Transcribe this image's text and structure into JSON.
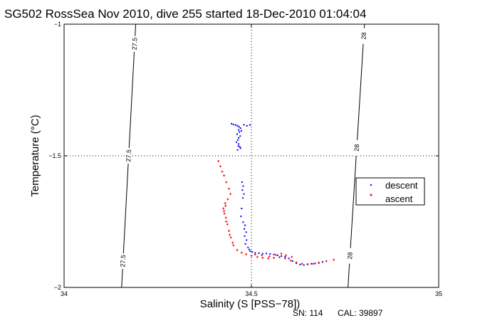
{
  "chart_data": {
    "type": "scatter",
    "title": "SG502 RossSea Nov 2010, dive 255 started 18-Dec-2010 01:04:04",
    "xlabel": "Salinity (S [PSS−78])",
    "ylabel": "Temperature (°C)",
    "xlim": [
      34,
      35
    ],
    "ylim": [
      -2,
      -1
    ],
    "xticks": [
      {
        "value": 34,
        "label": "34"
      },
      {
        "value": 34.5,
        "label": "34.5"
      },
      {
        "value": 35,
        "label": "35"
      }
    ],
    "yticks": [
      {
        "value": -1,
        "label": "−1"
      },
      {
        "value": -1.5,
        "label": "−1.5"
      },
      {
        "value": -2,
        "label": "−2"
      }
    ],
    "grid": {
      "x": [
        34.5
      ],
      "y": [
        -1.5
      ],
      "style": "dotted"
    },
    "isopycnals": [
      {
        "label": "27.5",
        "points": [
          [
            34.1535,
            -2
          ],
          [
            34.1912,
            -1
          ]
        ],
        "label_positions": [
          -1.075,
          -1.5,
          -1.9
        ]
      },
      {
        "label": "28",
        "points": [
          [
            34.7578,
            -2
          ],
          [
            34.8019,
            -1
          ]
        ],
        "label_positions": [
          -1.045,
          -1.47,
          -1.88
        ]
      }
    ],
    "legend": {
      "position": "right"
    },
    "series": [
      {
        "name": "descent",
        "color": "#0000ff",
        "marker": "dot",
        "points": [
          [
            34.447,
            -1.378
          ],
          [
            34.452,
            -1.381
          ],
          [
            34.458,
            -1.383
          ],
          [
            34.463,
            -1.386
          ],
          [
            34.467,
            -1.39
          ],
          [
            34.471,
            -1.395
          ],
          [
            34.466,
            -1.402
          ],
          [
            34.468,
            -1.41
          ],
          [
            34.462,
            -1.418
          ],
          [
            34.47,
            -1.425
          ],
          [
            34.466,
            -1.432
          ],
          [
            34.464,
            -1.44
          ],
          [
            34.46,
            -1.448
          ],
          [
            34.466,
            -1.455
          ],
          [
            34.465,
            -1.463
          ],
          [
            34.471,
            -1.471
          ],
          [
            34.463,
            -1.478
          ],
          [
            34.48,
            -1.382
          ],
          [
            34.488,
            -1.386
          ],
          [
            34.496,
            -1.383
          ],
          [
            34.473,
            -1.405
          ],
          [
            34.469,
            -1.466
          ],
          [
            34.475,
            -1.6
          ],
          [
            34.478,
            -1.615
          ],
          [
            34.476,
            -1.63
          ],
          [
            34.48,
            -1.645
          ],
          [
            34.477,
            -1.66
          ],
          [
            34.474,
            -1.7
          ],
          [
            34.472,
            -1.73
          ],
          [
            34.478,
            -1.752
          ],
          [
            34.483,
            -1.764
          ],
          [
            34.481,
            -1.778
          ],
          [
            34.486,
            -1.79
          ],
          [
            34.482,
            -1.805
          ],
          [
            34.487,
            -1.82
          ],
          [
            34.484,
            -1.835
          ],
          [
            34.491,
            -1.848
          ],
          [
            34.494,
            -1.856
          ],
          [
            34.497,
            -1.862
          ],
          [
            34.502,
            -1.865
          ],
          [
            34.51,
            -1.869
          ],
          [
            34.52,
            -1.87
          ],
          [
            34.53,
            -1.872
          ],
          [
            34.54,
            -1.871
          ],
          [
            34.55,
            -1.873
          ],
          [
            34.56,
            -1.875
          ],
          [
            34.57,
            -1.878
          ],
          [
            34.58,
            -1.881
          ],
          [
            34.59,
            -1.884
          ],
          [
            34.6,
            -1.89
          ],
          [
            34.61,
            -1.9
          ],
          [
            34.62,
            -1.908
          ],
          [
            34.63,
            -1.913
          ],
          [
            34.64,
            -1.915
          ],
          [
            34.65,
            -1.912
          ],
          [
            34.66,
            -1.91
          ],
          [
            34.67,
            -1.909
          ],
          [
            34.68,
            -1.907
          ],
          [
            34.69,
            -1.903
          ]
        ]
      },
      {
        "name": "ascent",
        "color": "#ff0000",
        "marker": "plus",
        "points": [
          [
            34.412,
            -1.52
          ],
          [
            34.417,
            -1.54
          ],
          [
            34.422,
            -1.56
          ],
          [
            34.427,
            -1.575
          ],
          [
            34.433,
            -1.6
          ],
          [
            34.44,
            -1.625
          ],
          [
            34.444,
            -1.645
          ],
          [
            34.437,
            -1.665
          ],
          [
            34.431,
            -1.69
          ],
          [
            34.427,
            -1.71
          ],
          [
            34.432,
            -1.735
          ],
          [
            34.436,
            -1.76
          ],
          [
            34.44,
            -1.785
          ],
          [
            34.445,
            -1.81
          ],
          [
            34.452,
            -1.84
          ],
          [
            34.462,
            -1.858
          ],
          [
            34.474,
            -1.868
          ],
          [
            34.486,
            -1.874
          ],
          [
            34.5,
            -1.88
          ],
          [
            34.516,
            -1.884
          ],
          [
            34.53,
            -1.888
          ],
          [
            34.545,
            -1.89
          ],
          [
            34.56,
            -1.888
          ],
          [
            34.575,
            -1.885
          ],
          [
            34.59,
            -1.89
          ],
          [
            34.605,
            -1.898
          ],
          [
            34.62,
            -1.905
          ],
          [
            34.635,
            -1.91
          ],
          [
            34.65,
            -1.912
          ],
          [
            34.665,
            -1.91
          ],
          [
            34.68,
            -1.906
          ],
          [
            34.7,
            -1.9
          ],
          [
            34.72,
            -1.895
          ],
          [
            34.51,
            -1.875
          ],
          [
            34.528,
            -1.878
          ],
          [
            34.548,
            -1.882
          ],
          [
            34.565,
            -1.876
          ],
          [
            34.58,
            -1.872
          ],
          [
            34.592,
            -1.878
          ],
          [
            34.608,
            -1.884
          ],
          [
            34.45,
            -1.83
          ],
          [
            34.442,
            -1.8
          ],
          [
            34.433,
            -1.75
          ],
          [
            34.428,
            -1.72
          ],
          [
            34.425,
            -1.7
          ],
          [
            34.43,
            -1.68
          ]
        ]
      }
    ]
  },
  "footer": {
    "sn": "SN: 114",
    "cal": "CAL: 39897"
  }
}
